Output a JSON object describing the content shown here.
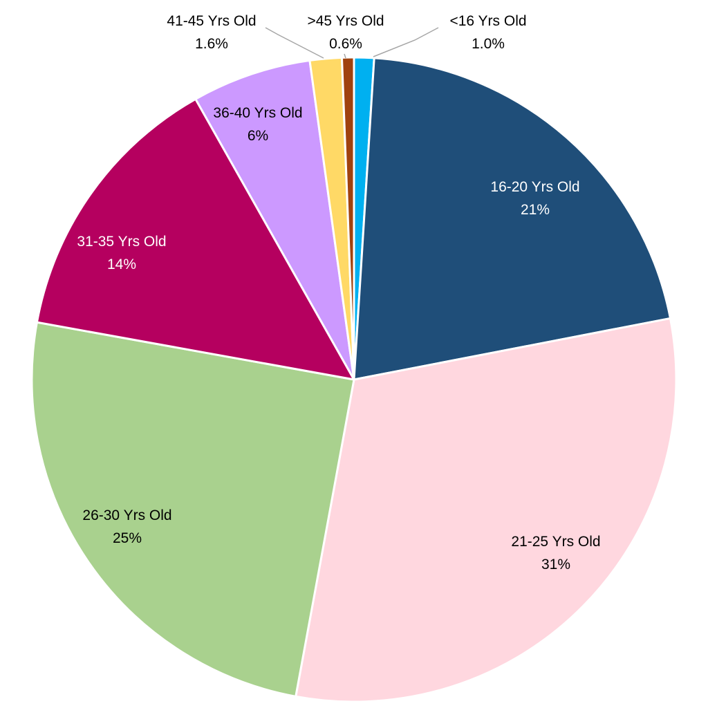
{
  "chart_data": {
    "type": "pie",
    "title": "",
    "slices": [
      {
        "label": "<16 Yrs Old",
        "value": 1.0,
        "display": "1.0%",
        "color": "#00b0f0",
        "label_color": "#000000"
      },
      {
        "label": "16-20 Yrs Old",
        "value": 21,
        "display": "21%",
        "color": "#1f4e79",
        "label_color": "#ffffff"
      },
      {
        "label": "21-25 Yrs Old",
        "value": 31,
        "display": "31%",
        "color": "#ffd7df",
        "label_color": "#000000"
      },
      {
        "label": "26-30 Yrs Old",
        "value": 25,
        "display": "25%",
        "color": "#a9d18e",
        "label_color": "#000000"
      },
      {
        "label": "31-35 Yrs Old",
        "value": 14,
        "display": "14%",
        "color": "#b5005f",
        "label_color": "#ffffff"
      },
      {
        "label": "36-40 Yrs Old",
        "value": 6,
        "display": "6%",
        "color": "#cc99ff",
        "label_color": "#000000"
      },
      {
        "label": "41-45 Yrs Old",
        "value": 1.6,
        "display": "1.6%",
        "color": "#ffd966",
        "label_color": "#000000"
      },
      {
        "label": ">45 Yrs Old",
        "value": 0.6,
        "display": "0.6%",
        "color": "#a0420e",
        "label_color": "#000000"
      }
    ],
    "start_angle_deg": 0,
    "direction": "clockwise",
    "legend": "none"
  }
}
